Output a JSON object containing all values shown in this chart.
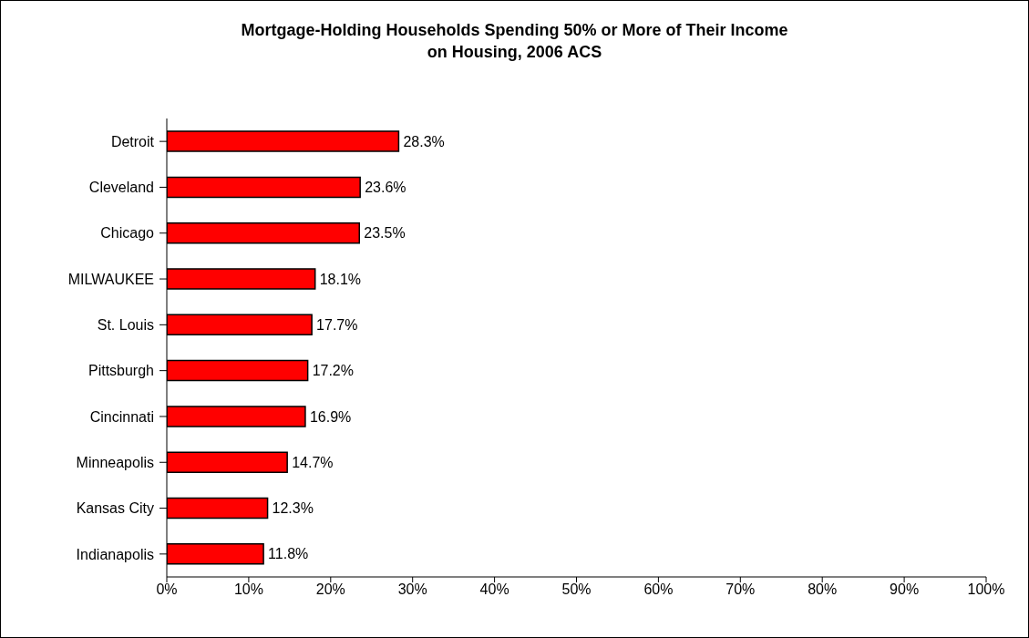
{
  "chart_data": {
    "type": "bar",
    "orientation": "horizontal",
    "title": "Mortgage-Holding Households Spending 50% or More of Their Income on Housing, 2006 ACS",
    "categories": [
      "Detroit",
      "Cleveland",
      "Chicago",
      "MILWAUKEE",
      "St. Louis",
      "Pittsburgh",
      "Cincinnati",
      "Minneapolis",
      "Kansas City",
      "Indianapolis"
    ],
    "values": [
      28.3,
      23.6,
      23.5,
      18.1,
      17.7,
      17.2,
      16.9,
      14.7,
      12.3,
      11.8
    ],
    "value_labels": [
      "28.3%",
      "23.6%",
      "23.5%",
      "18.1%",
      "17.7%",
      "17.2%",
      "16.9%",
      "14.7%",
      "12.3%",
      "11.8%"
    ],
    "color": "#ff0000",
    "xlim": [
      0,
      100
    ],
    "xticks": [
      {
        "value": 0,
        "label": "0%"
      },
      {
        "value": 10,
        "label": "10%"
      },
      {
        "value": 20,
        "label": "20%"
      },
      {
        "value": 30,
        "label": "30%"
      },
      {
        "value": 40,
        "label": "40%"
      },
      {
        "value": 50,
        "label": "50%"
      },
      {
        "value": 60,
        "label": "60%"
      },
      {
        "value": 70,
        "label": "70%"
      },
      {
        "value": 80,
        "label": "80%"
      },
      {
        "value": 90,
        "label": "90%"
      },
      {
        "value": 100,
        "label": "100%"
      }
    ],
    "grid": false,
    "legend": false
  }
}
